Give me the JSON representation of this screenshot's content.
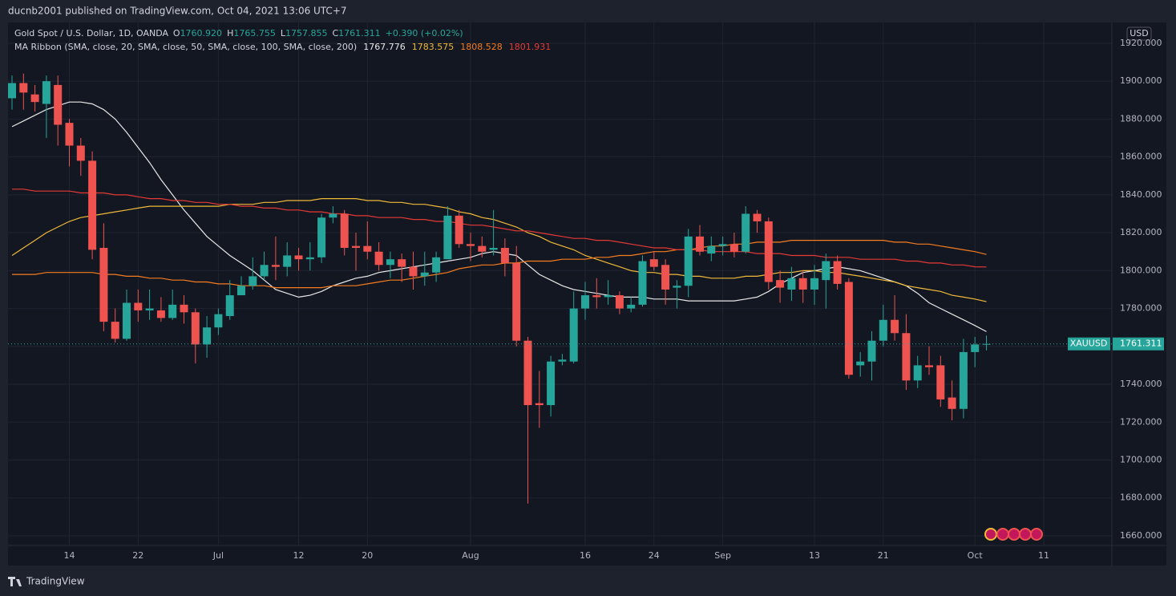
{
  "header": {
    "publisher": "ducnb2001 published on TradingView.com, Oct 04, 2021 13:06 UTC+7",
    "symbol": "Gold Spot / U.S. Dollar, 1D, OANDA",
    "ohlc": [
      {
        "prefix": "O",
        "value": "1760.920"
      },
      {
        "prefix": "H",
        "value": "1765.755"
      },
      {
        "prefix": "L",
        "value": "1757.855"
      },
      {
        "prefix": "C",
        "value": "1761.311"
      }
    ],
    "change": "+0.390 (+0.02%)",
    "indicator": "MA Ribbon (SMA, close, 20, SMA, close, 50, SMA, close, 100, SMA, close, 200)",
    "currency": "USD",
    "ticker": "XAUUSD",
    "footer": "TradingView"
  },
  "chart_data": {
    "type": "candlestick",
    "up_color": "#26a69a",
    "down_color": "#ef5350",
    "grid": true,
    "categories": [
      null,
      null,
      null,
      null,
      null,
      "14",
      null,
      null,
      null,
      null,
      null,
      "22",
      null,
      null,
      null,
      null,
      null,
      null,
      "Jul",
      null,
      null,
      null,
      null,
      null,
      null,
      "12",
      null,
      null,
      null,
      null,
      null,
      "20",
      null,
      null,
      null,
      null,
      null,
      null,
      null,
      null,
      "Aug",
      null,
      null,
      null,
      null,
      null,
      null,
      null,
      null,
      null,
      "16",
      null,
      null,
      null,
      null,
      null,
      "24",
      null,
      null,
      null,
      null,
      null,
      "Sep",
      null,
      null,
      null,
      null,
      null,
      null,
      null,
      "13",
      null,
      null,
      null,
      null,
      null,
      "21",
      null,
      null,
      null,
      null,
      null,
      null,
      null,
      "Oct",
      null,
      null,
      null,
      null,
      null,
      "11"
    ],
    "open": [
      1891,
      1899,
      1893,
      1888,
      1898,
      1878,
      1866,
      1858,
      1812,
      1773,
      1764,
      1783,
      1779,
      1779,
      1775,
      1782,
      1778,
      1761,
      1770,
      1776,
      1787,
      1792,
      1797,
      1803,
      1802,
      1808,
      1806,
      1807,
      1828,
      1830,
      1813,
      1813,
      1810,
      1803,
      1806,
      1802,
      1797,
      1799,
      1806,
      1829,
      1814,
      1813,
      1811,
      1812,
      1804,
      1763,
      1730,
      1729,
      1752,
      1752,
      1780,
      1787,
      1786,
      1787,
      1780,
      1782,
      1806,
      1803,
      1791,
      1792,
      1818,
      1809,
      1813,
      1814,
      1810,
      1830,
      1826,
      1795,
      1790,
      1796,
      1790,
      1795,
      1805,
      1794,
      1750,
      1752,
      1763,
      1774,
      1767,
      1742,
      1750,
      1750,
      1733,
      1727,
      1757,
      1760.92,
      null,
      null,
      null,
      null,
      null
    ],
    "high": [
      1903,
      1904,
      1898,
      1903,
      1903,
      1880,
      1870,
      1863,
      1825,
      1780,
      1790,
      1790,
      1790,
      1786,
      1790,
      1787,
      1780,
      1776,
      1780,
      1795,
      1797,
      1807,
      1810,
      1818,
      1815,
      1812,
      1815,
      1830,
      1834,
      1832,
      1820,
      1826,
      1815,
      1810,
      1809,
      1810,
      1810,
      1810,
      1834,
      1832,
      1820,
      1818,
      1832,
      1817,
      1813,
      1765,
      1747,
      1755,
      1756,
      1789,
      1794,
      1796,
      1795,
      1789,
      1786,
      1808,
      1810,
      1806,
      1795,
      1822,
      1824,
      1818,
      1818,
      1820,
      1834,
      1832,
      1828,
      1800,
      1802,
      1800,
      1803,
      1809,
      1808,
      1796,
      1757,
      1768,
      1782,
      1787,
      1777,
      1755,
      1760,
      1755,
      1742,
      1764,
      1765,
      1765.755,
      null,
      null,
      null,
      null,
      null
    ],
    "low": [
      1885,
      1885,
      1884,
      1870,
      1866,
      1855,
      1850,
      1806,
      1768,
      1762,
      1763,
      1773,
      1774,
      1773,
      1774,
      1772,
      1751,
      1754,
      1766,
      1774,
      1787,
      1790,
      1795,
      1795,
      1797,
      1800,
      1800,
      1804,
      1825,
      1808,
      1800,
      1806,
      1800,
      1796,
      1794,
      1790,
      1792,
      1794,
      1806,
      1812,
      1805,
      1807,
      1808,
      1797,
      1760,
      1677,
      1717,
      1723,
      1750,
      1751,
      1774,
      1780,
      1782,
      1777,
      1778,
      1781,
      1800,
      1782,
      1780,
      1786,
      1808,
      1805,
      1808,
      1807,
      1809,
      1820,
      1790,
      1783,
      1784,
      1783,
      1782,
      1780,
      1790,
      1743,
      1744,
      1742,
      1760,
      1763,
      1737,
      1738,
      1745,
      1728,
      1721,
      1722,
      1749,
      1757.855,
      null,
      null,
      null,
      null,
      null
    ],
    "close": [
      1899,
      1894,
      1889,
      1900,
      1877,
      1866,
      1858,
      1811,
      1773,
      1764,
      1783,
      1779,
      1780,
      1775,
      1782,
      1778,
      1761,
      1770,
      1777,
      1787,
      1792,
      1797,
      1803,
      1802,
      1808,
      1806,
      1807,
      1828,
      1830,
      1812,
      1812,
      1810,
      1803,
      1806,
      1802,
      1797,
      1799,
      1807,
      1829,
      1814,
      1813,
      1810,
      1812,
      1804,
      1763,
      1729,
      1729,
      1752,
      1753,
      1780,
      1787,
      1786,
      1787,
      1780,
      1782,
      1805,
      1802,
      1790,
      1792,
      1818,
      1810,
      1813,
      1814,
      1810,
      1830,
      1826,
      1794,
      1791,
      1796,
      1790,
      1796,
      1805,
      1793,
      1745,
      1752,
      1763,
      1774,
      1767,
      1742,
      1750,
      1749,
      1732,
      1727,
      1757,
      1761,
      1761.311,
      null,
      null,
      null,
      null,
      null
    ],
    "series": [
      {
        "name": "SMA 20",
        "color": "#e8e8e8",
        "values": [
          1876,
          1879,
          1882,
          1885,
          1887,
          1889,
          1889,
          1888,
          1885,
          1880,
          1873,
          1865,
          1857,
          1848,
          1840,
          1832,
          1825,
          1818,
          1813,
          1808,
          1804,
          1800,
          1795,
          1790,
          1788,
          1786,
          1787,
          1789,
          1792,
          1794,
          1796,
          1797,
          1799,
          1800,
          1801,
          1802,
          1803,
          1804,
          1805,
          1806,
          1807,
          1809,
          1810,
          1809,
          1808,
          1803,
          1798,
          1795,
          1792,
          1790,
          1789,
          1788,
          1787,
          1786,
          1786,
          1786,
          1785,
          1785,
          1785,
          1784,
          1784,
          1784,
          1784,
          1784,
          1785,
          1786,
          1789,
          1793,
          1796,
          1799,
          1800,
          1801,
          1802,
          1801,
          1800,
          1798,
          1796,
          1794,
          1792,
          1788,
          1783,
          1780,
          1777,
          1774,
          1771,
          1767.776,
          null,
          null,
          null,
          null,
          null
        ]
      },
      {
        "name": "SMA 50",
        "color": "#f0b93a",
        "values": [
          1808,
          1812,
          1816,
          1820,
          1823,
          1826,
          1828,
          1829,
          1830,
          1831,
          1832,
          1833,
          1834,
          1834,
          1834,
          1834,
          1834,
          1834,
          1834,
          1835,
          1835,
          1835,
          1836,
          1836,
          1837,
          1837,
          1837,
          1838,
          1838,
          1838,
          1838,
          1837,
          1837,
          1836,
          1836,
          1835,
          1835,
          1834,
          1833,
          1831,
          1830,
          1828,
          1827,
          1825,
          1823,
          1820,
          1818,
          1815,
          1813,
          1811,
          1808,
          1806,
          1804,
          1802,
          1800,
          1799,
          1799,
          1798,
          1798,
          1797,
          1797,
          1796,
          1796,
          1796,
          1797,
          1797,
          1798,
          1799,
          1799,
          1800,
          1800,
          1799,
          1799,
          1798,
          1797,
          1796,
          1795,
          1794,
          1792,
          1791,
          1790,
          1789,
          1787,
          1786,
          1785,
          1783.575,
          null,
          null,
          null,
          null,
          null
        ]
      },
      {
        "name": "SMA 100",
        "color": "#f57c1f",
        "values": [
          1798,
          1798,
          1798,
          1799,
          1799,
          1799,
          1799,
          1799,
          1798,
          1798,
          1797,
          1797,
          1796,
          1796,
          1795,
          1795,
          1794,
          1794,
          1793,
          1793,
          1792,
          1792,
          1792,
          1791,
          1791,
          1791,
          1791,
          1791,
          1792,
          1792,
          1792,
          1793,
          1794,
          1795,
          1795,
          1796,
          1797,
          1798,
          1799,
          1801,
          1802,
          1803,
          1803,
          1804,
          1804,
          1805,
          1805,
          1805,
          1806,
          1806,
          1806,
          1807,
          1807,
          1808,
          1808,
          1809,
          1810,
          1810,
          1811,
          1811,
          1812,
          1813,
          1813,
          1814,
          1814,
          1815,
          1815,
          1815,
          1816,
          1816,
          1816,
          1816,
          1816,
          1816,
          1816,
          1816,
          1816,
          1815,
          1815,
          1814,
          1814,
          1813,
          1812,
          1811,
          1810,
          1808.528,
          null,
          null,
          null,
          null,
          null
        ]
      },
      {
        "name": "SMA 200",
        "color": "#e53935",
        "values": [
          1843,
          1843,
          1842,
          1842,
          1842,
          1842,
          1841,
          1841,
          1841,
          1840,
          1840,
          1839,
          1838,
          1838,
          1837,
          1837,
          1836,
          1836,
          1835,
          1835,
          1834,
          1834,
          1833,
          1833,
          1832,
          1832,
          1831,
          1831,
          1830,
          1830,
          1829,
          1829,
          1828,
          1828,
          1828,
          1827,
          1827,
          1826,
          1826,
          1825,
          1824,
          1824,
          1823,
          1822,
          1821,
          1821,
          1820,
          1819,
          1818,
          1817,
          1817,
          1816,
          1816,
          1815,
          1814,
          1813,
          1812,
          1812,
          1811,
          1811,
          1811,
          1810,
          1810,
          1810,
          1810,
          1809,
          1809,
          1809,
          1808,
          1808,
          1808,
          1807,
          1807,
          1807,
          1806,
          1806,
          1806,
          1806,
          1805,
          1805,
          1804,
          1804,
          1803,
          1803,
          1802,
          1801.931,
          null,
          null,
          null,
          null,
          null
        ]
      }
    ],
    "ylim": [
      1654.9,
      1931
    ],
    "yticks": [
      {
        "value": 1660,
        "label": "1660.000"
      },
      {
        "value": 1680,
        "label": "1680.000"
      },
      {
        "value": 1700,
        "label": "1700.000"
      },
      {
        "value": 1720,
        "label": "1720.000"
      },
      {
        "value": 1740,
        "label": "1740.000"
      },
      {
        "value": 1760,
        "label": "1760.000"
      },
      {
        "value": 1780,
        "label": "1780.000"
      },
      {
        "value": 1800,
        "label": "1800.000"
      },
      {
        "value": 1820,
        "label": "1820.000"
      },
      {
        "value": 1840,
        "label": "1840.000"
      },
      {
        "value": 1860,
        "label": "1860.000"
      },
      {
        "value": 1880,
        "label": "1880.000"
      },
      {
        "value": 1900,
        "label": "1900.000"
      },
      {
        "value": 1920,
        "label": "1920.000"
      }
    ]
  }
}
